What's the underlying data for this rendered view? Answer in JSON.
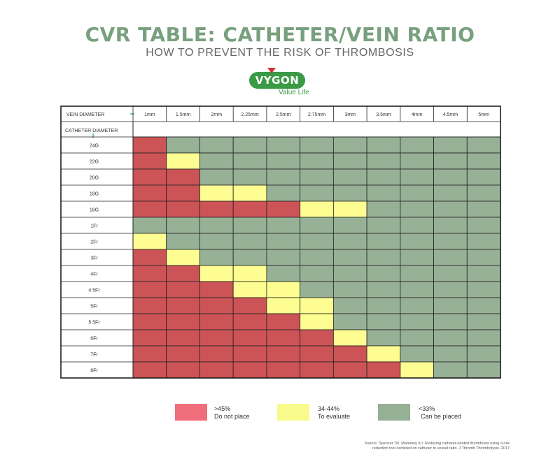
{
  "header": {
    "title": "CVR TABLE: CATHETER/VEIN RATIO",
    "subtitle": "HOW TO PREVENT THE RISK OF THROMBOSIS"
  },
  "logo": {
    "brand": "VYGON",
    "tagline": "Value Life"
  },
  "colors": {
    "title_green": "#78a07e",
    "red": "#cd5456",
    "yellow": "#fdfd91",
    "green": "#97b197",
    "legend_red": "#f06e7c",
    "legend_yellow": "#f8fb8b",
    "legend_green": "#95b095"
  },
  "chart_data": {
    "type": "heatmap",
    "column_header_label": "VEIN DIAMETER",
    "row_header_label": "CATHETER DIAMETER",
    "columns": [
      "1mm",
      "1.5mm",
      "2mm",
      "2.25mm",
      "2.5mm",
      "2.75mm",
      "3mm",
      "3.5mm",
      "4mm",
      "4.5mm",
      "5mm"
    ],
    "rows": [
      "24G",
      "22G",
      "20G",
      "18G",
      "16G",
      "1Fr",
      "2Fr",
      "3Fr",
      "4Fr",
      "4.5Fr",
      "5Fr",
      "5.5Fr",
      "6Fr",
      "7Fr",
      "8Fr"
    ],
    "categories": {
      "R": ">45%",
      "Y": "34-44%",
      "G": "<33%"
    },
    "cells": [
      [
        "R",
        "G",
        "G",
        "G",
        "G",
        "G",
        "G",
        "G",
        "G",
        "G",
        "G"
      ],
      [
        "R",
        "Y",
        "G",
        "G",
        "G",
        "G",
        "G",
        "G",
        "G",
        "G",
        "G"
      ],
      [
        "R",
        "R",
        "G",
        "G",
        "G",
        "G",
        "G",
        "G",
        "G",
        "G",
        "G"
      ],
      [
        "R",
        "R",
        "Y",
        "Y",
        "G",
        "G",
        "G",
        "G",
        "G",
        "G",
        "G"
      ],
      [
        "R",
        "R",
        "R",
        "R",
        "R",
        "Y",
        "Y",
        "G",
        "G",
        "G",
        "G"
      ],
      [
        "G",
        "G",
        "G",
        "G",
        "G",
        "G",
        "G",
        "G",
        "G",
        "G",
        "G"
      ],
      [
        "Y",
        "G",
        "G",
        "G",
        "G",
        "G",
        "G",
        "G",
        "G",
        "G",
        "G"
      ],
      [
        "R",
        "Y",
        "G",
        "G",
        "G",
        "G",
        "G",
        "G",
        "G",
        "G",
        "G"
      ],
      [
        "R",
        "R",
        "Y",
        "Y",
        "G",
        "G",
        "G",
        "G",
        "G",
        "G",
        "G"
      ],
      [
        "R",
        "R",
        "R",
        "Y",
        "Y",
        "G",
        "G",
        "G",
        "G",
        "G",
        "G"
      ],
      [
        "R",
        "R",
        "R",
        "R",
        "Y",
        "Y",
        "G",
        "G",
        "G",
        "G",
        "G"
      ],
      [
        "R",
        "R",
        "R",
        "R",
        "R",
        "Y",
        "G",
        "G",
        "G",
        "G",
        "G"
      ],
      [
        "R",
        "R",
        "R",
        "R",
        "R",
        "R",
        "Y",
        "G",
        "G",
        "G",
        "G"
      ],
      [
        "R",
        "R",
        "R",
        "R",
        "R",
        "R",
        "R",
        "Y",
        "G",
        "G",
        "G"
      ],
      [
        "R",
        "R",
        "R",
        "R",
        "R",
        "R",
        "R",
        "R",
        "Y",
        "G",
        "G"
      ]
    ]
  },
  "legend": [
    {
      "key": "R",
      "label_top": ">45%",
      "label_bottom": "Do not place"
    },
    {
      "key": "Y",
      "label_top": "34-44%",
      "label_bottom": "To evaluate"
    },
    {
      "key": "G",
      "label_top": "<33%",
      "label_bottom": "Can be placed"
    }
  ],
  "source": {
    "line1": "Source: Spencer TR, Mahoney KJ. Reducing catheter-related thrombosis using a risk",
    "line2": "reduction tool centered on catheter to vessel ratio. J Thromb Thrombolysis. 2017"
  }
}
